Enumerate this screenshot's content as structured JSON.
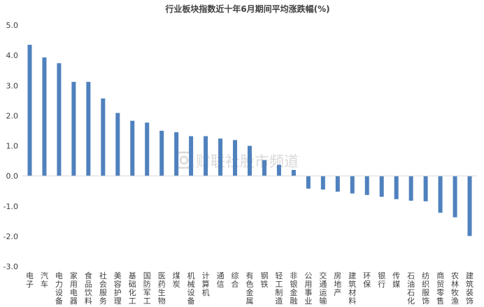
{
  "chart_data": {
    "type": "bar",
    "title": "行业板块指数近十年6月期间平均涨跌幅(%)",
    "xlabel": "",
    "ylabel": "",
    "ylim": [
      -3.0,
      5.0
    ],
    "yticks": [
      "5.0",
      "4.0",
      "3.0",
      "2.0",
      "1.0",
      "0.0",
      "-1.0",
      "-2.0",
      "-3.0"
    ],
    "grid": false,
    "legend": "none",
    "bar_color": "#4F81BD",
    "categories": [
      "电子",
      "汽车",
      "电力设备",
      "家用电器",
      "食品饮料",
      "社会服务",
      "美容护理",
      "基础化工",
      "国防军工",
      "医药生物",
      "煤炭",
      "机械设备",
      "计算机",
      "通信",
      "综合",
      "有色金属",
      "钢铁",
      "轻工制造",
      "非银金融",
      "公用事业",
      "交通运输",
      "房地产",
      "建筑材料",
      "环保",
      "银行",
      "传媒",
      "石油石化",
      "纺织服饰",
      "商贸零售",
      "农林牧渔",
      "建筑装饰"
    ],
    "values": [
      4.35,
      3.93,
      3.74,
      3.12,
      3.12,
      2.57,
      2.09,
      1.83,
      1.77,
      1.5,
      1.45,
      1.32,
      1.32,
      1.24,
      1.19,
      1.0,
      0.52,
      0.37,
      0.2,
      -0.42,
      -0.45,
      -0.52,
      -0.58,
      -0.63,
      -0.69,
      -0.77,
      -0.82,
      -0.84,
      -1.22,
      -1.37,
      -1.99
    ]
  },
  "watermark": {
    "text": "财联社股市频道",
    "color": "#d9d9d9"
  }
}
